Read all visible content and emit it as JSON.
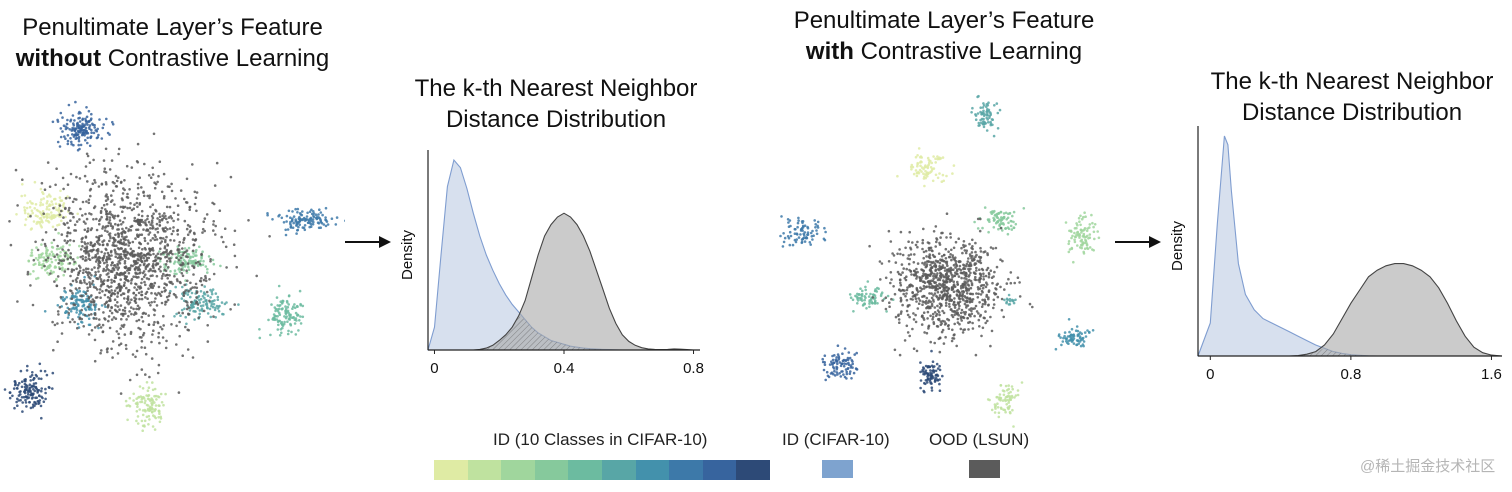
{
  "panels": {
    "left_feature": {
      "title_line1": "Penultimate Layer’s Feature",
      "title_bold": "without",
      "title_rest": " Contrastive Learning"
    },
    "left_kde": {
      "title_line1": "The k-th Nearest Neighbor",
      "title_line2": "Distance Distribution"
    },
    "right_feature": {
      "title_line1": "Penultimate Layer’s Feature",
      "title_bold": "with",
      "title_rest": " Contrastive Learning"
    },
    "right_kde": {
      "title_line1": "The k-th Nearest Neighbor",
      "title_line2": "Distance Distribution"
    }
  },
  "legend": {
    "id_classes_label": "ID (10 Classes in CIFAR-10)",
    "id_classes_colors": [
      "#dfeba4",
      "#bfe29f",
      "#a0d69d",
      "#86c99c",
      "#6cbba0",
      "#58a6a6",
      "#4391ac",
      "#3d79a9",
      "#37649e",
      "#2d4a77"
    ],
    "id_label": "ID (CIFAR-10)",
    "id_color": "#7ea3cf",
    "ood_label": "OOD (LSUN)",
    "ood_color": "#5b5b5b"
  },
  "watermark": "@稀土掘金技术社区",
  "chart_data": [
    {
      "type": "scatter",
      "title": "Penultimate Layer’s Feature without Contrastive Learning",
      "description_series": [
        {
          "name": "ID (10 Classes in CIFAR-10)",
          "clusters": 10
        },
        {
          "name": "OOD (LSUN)",
          "clusters": 1
        }
      ]
    },
    {
      "type": "area",
      "title": "The k-th Nearest Neighbor Distance Distribution",
      "xlabel": "",
      "ylabel": "Density",
      "xlim": [
        -0.02,
        0.82
      ],
      "xticks": [
        0,
        0.4,
        0.8
      ],
      "x": [
        -0.02,
        0.0,
        0.02,
        0.04,
        0.06,
        0.08,
        0.1,
        0.12,
        0.14,
        0.16,
        0.18,
        0.2,
        0.22,
        0.24,
        0.26,
        0.28,
        0.3,
        0.32,
        0.34,
        0.36,
        0.38,
        0.4,
        0.42,
        0.44,
        0.46,
        0.48,
        0.5,
        0.52,
        0.54,
        0.56,
        0.58,
        0.6,
        0.62,
        0.64,
        0.66,
        0.68,
        0.7,
        0.72,
        0.74,
        0.76,
        0.78,
        0.8,
        0.82
      ],
      "series": [
        {
          "name": "ID (CIFAR-10)",
          "values": [
            0.0,
            0.12,
            0.5,
            0.86,
            1.0,
            0.96,
            0.85,
            0.72,
            0.6,
            0.5,
            0.42,
            0.35,
            0.29,
            0.24,
            0.2,
            0.16,
            0.12,
            0.09,
            0.07,
            0.05,
            0.04,
            0.03,
            0.02,
            0.015,
            0.01,
            0.007,
            0.005,
            0.003,
            0.002,
            0.001,
            0.0,
            0.0,
            0.0,
            0.0,
            0.0,
            0.0,
            0.0,
            0.0,
            0.0,
            0.0,
            0.0,
            0.0,
            0.0
          ]
        },
        {
          "name": "OOD (LSUN)",
          "values": [
            0.0,
            0.0,
            0.0,
            0.0,
            0.0,
            0.0,
            0.0,
            0.0,
            0.003,
            0.01,
            0.025,
            0.05,
            0.08,
            0.12,
            0.18,
            0.26,
            0.38,
            0.5,
            0.6,
            0.66,
            0.7,
            0.72,
            0.7,
            0.66,
            0.6,
            0.52,
            0.42,
            0.32,
            0.22,
            0.14,
            0.08,
            0.045,
            0.025,
            0.012,
            0.006,
            0.003,
            0.002,
            0.003,
            0.006,
            0.004,
            0.002,
            0.0,
            0.0
          ]
        }
      ]
    },
    {
      "type": "scatter",
      "title": "Penultimate Layer’s Feature with Contrastive Learning",
      "description_series": [
        {
          "name": "ID (10 Classes in CIFAR-10)",
          "clusters": 10
        },
        {
          "name": "OOD (LSUN)",
          "clusters": 1
        }
      ]
    },
    {
      "type": "area",
      "title": "The k-th Nearest Neighbor Distance Distribution",
      "xlabel": "",
      "ylabel": "Density",
      "xlim": [
        -0.07,
        1.66
      ],
      "xticks": [
        0.8,
        1.6
      ],
      "xtick_zero_label": "0",
      "x": [
        -0.07,
        0.0,
        0.04,
        0.08,
        0.1,
        0.12,
        0.16,
        0.2,
        0.25,
        0.3,
        0.35,
        0.4,
        0.45,
        0.5,
        0.55,
        0.6,
        0.65,
        0.7,
        0.75,
        0.8,
        0.85,
        0.9,
        0.95,
        1.0,
        1.05,
        1.1,
        1.15,
        1.2,
        1.25,
        1.3,
        1.35,
        1.4,
        1.45,
        1.5,
        1.55,
        1.6,
        1.66
      ],
      "series": [
        {
          "name": "ID (CIFAR-10)",
          "values": [
            0.0,
            0.15,
            0.6,
            1.0,
            0.96,
            0.75,
            0.42,
            0.28,
            0.21,
            0.17,
            0.15,
            0.13,
            0.11,
            0.09,
            0.07,
            0.05,
            0.035,
            0.02,
            0.012,
            0.006,
            0.003,
            0.001,
            0.0,
            0.0,
            0.0,
            0.0,
            0.0,
            0.0,
            0.0,
            0.0,
            0.0,
            0.0,
            0.0,
            0.0,
            0.0,
            0.0,
            0.0
          ]
        },
        {
          "name": "OOD (LSUN)",
          "values": [
            0.0,
            0.0,
            0.0,
            0.0,
            0.0,
            0.0,
            0.0,
            0.0,
            0.0,
            0.0,
            0.0,
            0.0,
            0.0,
            0.002,
            0.008,
            0.02,
            0.05,
            0.1,
            0.17,
            0.24,
            0.3,
            0.36,
            0.39,
            0.41,
            0.42,
            0.42,
            0.41,
            0.39,
            0.36,
            0.31,
            0.24,
            0.16,
            0.09,
            0.04,
            0.015,
            0.004,
            0.0
          ]
        }
      ]
    }
  ]
}
